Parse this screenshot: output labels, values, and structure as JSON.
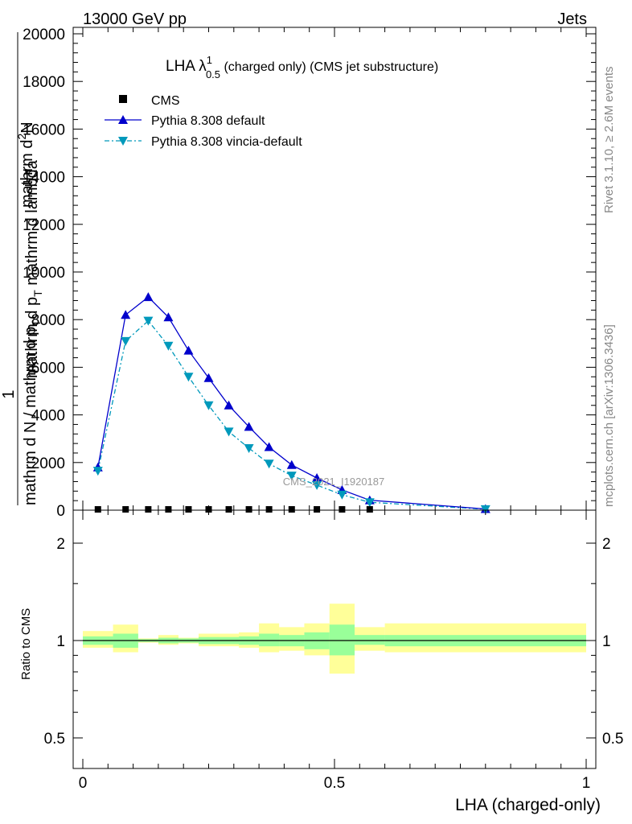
{
  "header": {
    "left": "13000 GeV pp",
    "right": "Jets"
  },
  "side": {
    "rivet": "Rivet 3.1.10, ≥ 2.6M events",
    "mcplots": "mcplots.cern.ch [arXiv:1306.3436]"
  },
  "watermark": "CMS_2021_I1920187",
  "plot_title": {
    "main": "LHA λ",
    "sup": "1",
    "sub": "0.5",
    "rest": " (charged only) (CMS jet substructure)"
  },
  "ylabel_main": {
    "one": "1",
    "denominator": "mathrm d N / mathrm d p",
    "sub": "T",
    "numerator": "mathrm d",
    "numerator_sup": "2",
    "numerator_rest": "N",
    "denom2": "mathrm d p",
    "denom2_sub": "T",
    "denom2_rest": " mathrm d lambda"
  },
  "ratio_label": "Ratio to CMS",
  "xlabel": "LHA (charged-only)",
  "colors": {
    "pythia_default": "#0000cc",
    "vincia": "#0099bb",
    "band_inner": "#99ff99",
    "band_outer": "#ffff99",
    "data": "#000000"
  },
  "chart_data": [
    {
      "type": "line",
      "xlim": [
        0,
        1
      ],
      "ylim": [
        0,
        20000
      ],
      "yticks": [
        "0",
        "2000",
        "4000",
        "6000",
        "8000",
        "10000",
        "12000",
        "14000",
        "16000",
        "18000",
        "20000"
      ],
      "legend_position": "top-left",
      "series": [
        {
          "name": "CMS",
          "x": [
            0.03,
            0.085,
            0.13,
            0.17,
            0.21,
            0.25,
            0.29,
            0.33,
            0.37,
            0.415,
            0.465,
            0.515,
            0.57
          ],
          "y": [
            0,
            0,
            0,
            0,
            0,
            0,
            0,
            0,
            0,
            0,
            0,
            0,
            0
          ]
        },
        {
          "name": "Pythia 8.308 default",
          "x": [
            0.03,
            0.085,
            0.13,
            0.17,
            0.21,
            0.25,
            0.29,
            0.33,
            0.37,
            0.415,
            0.465,
            0.515,
            0.57,
            0.8
          ],
          "y": [
            1800,
            8200,
            8950,
            8100,
            6700,
            5550,
            4400,
            3500,
            2650,
            1900,
            1350,
            850,
            420,
            50
          ]
        },
        {
          "name": "Pythia 8.308 vincia-default",
          "x": [
            0.03,
            0.085,
            0.13,
            0.17,
            0.21,
            0.25,
            0.29,
            0.33,
            0.37,
            0.415,
            0.465,
            0.515,
            0.57,
            0.8
          ],
          "y": [
            1650,
            7100,
            7950,
            6900,
            5600,
            4400,
            3300,
            2600,
            1950,
            1450,
            1050,
            650,
            330,
            40
          ]
        }
      ]
    },
    {
      "type": "area",
      "xlim": [
        0,
        1
      ],
      "ylim": [
        0.42,
        2.3
      ],
      "yticks": [
        "0.5",
        "1",
        "2"
      ],
      "xticks": [
        "0",
        "0.5",
        "1"
      ],
      "bins": [
        {
          "x": [
            0.0,
            0.06
          ],
          "inner": [
            0.97,
            1.03
          ],
          "outer": [
            0.95,
            1.07
          ]
        },
        {
          "x": [
            0.06,
            0.11
          ],
          "inner": [
            0.95,
            1.05
          ],
          "outer": [
            0.92,
            1.12
          ]
        },
        {
          "x": [
            0.11,
            0.15
          ],
          "inner": [
            0.99,
            1.01
          ],
          "outer": [
            0.985,
            1.015
          ]
        },
        {
          "x": [
            0.15,
            0.19
          ],
          "inner": [
            0.98,
            1.02
          ],
          "outer": [
            0.97,
            1.04
          ]
        },
        {
          "x": [
            0.19,
            0.23
          ],
          "inner": [
            0.985,
            1.015
          ],
          "outer": [
            0.98,
            1.02
          ]
        },
        {
          "x": [
            0.23,
            0.27
          ],
          "inner": [
            0.975,
            1.025
          ],
          "outer": [
            0.96,
            1.05
          ]
        },
        {
          "x": [
            0.27,
            0.31
          ],
          "inner": [
            0.975,
            1.025
          ],
          "outer": [
            0.96,
            1.05
          ]
        },
        {
          "x": [
            0.31,
            0.35
          ],
          "inner": [
            0.97,
            1.03
          ],
          "outer": [
            0.95,
            1.06
          ]
        },
        {
          "x": [
            0.35,
            0.39
          ],
          "inner": [
            0.96,
            1.05
          ],
          "outer": [
            0.92,
            1.13
          ]
        },
        {
          "x": [
            0.39,
            0.44
          ],
          "inner": [
            0.96,
            1.04
          ],
          "outer": [
            0.93,
            1.1
          ]
        },
        {
          "x": [
            0.44,
            0.49
          ],
          "inner": [
            0.94,
            1.06
          ],
          "outer": [
            0.9,
            1.13
          ]
        },
        {
          "x": [
            0.49,
            0.54
          ],
          "inner": [
            0.9,
            1.12
          ],
          "outer": [
            0.79,
            1.3
          ]
        },
        {
          "x": [
            0.54,
            0.6
          ],
          "inner": [
            0.97,
            1.04
          ],
          "outer": [
            0.93,
            1.1
          ]
        },
        {
          "x": [
            0.6,
            1.0
          ],
          "inner": [
            0.96,
            1.04
          ],
          "outer": [
            0.92,
            1.13
          ]
        }
      ],
      "reference": 1
    }
  ]
}
